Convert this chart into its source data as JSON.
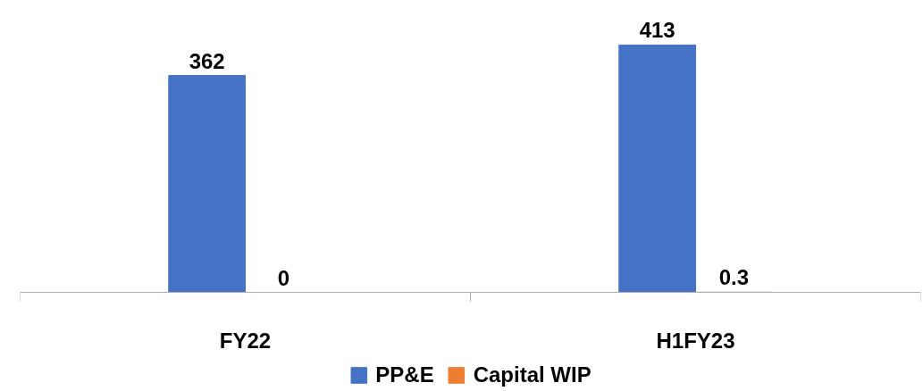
{
  "chart_data": {
    "type": "bar",
    "categories": [
      "FY22",
      "H1FY23"
    ],
    "series": [
      {
        "name": "PP&E",
        "color": "#4472c4",
        "values": [
          362,
          413
        ]
      },
      {
        "name": "Capital WIP",
        "color": "#ed7d31",
        "values": [
          0,
          0.3
        ]
      }
    ],
    "tick_labels": "x",
    "data_labels": true,
    "legend": "bottom",
    "grid": false
  }
}
